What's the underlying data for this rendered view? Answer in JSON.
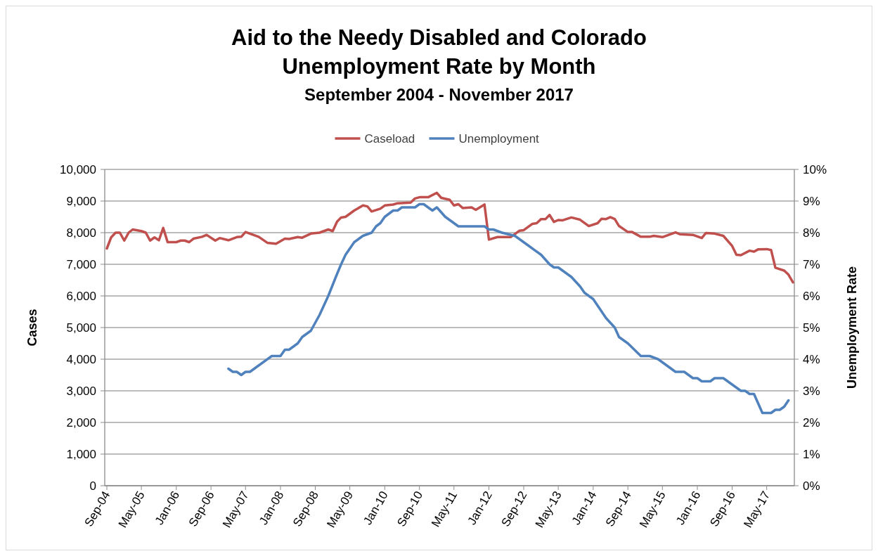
{
  "chart_data": {
    "type": "line",
    "title": "Aid to the Needy Disabled and Colorado Unemployment Rate by Month",
    "subtitle": "September 2004 - November 2017",
    "ylabel": "Cases",
    "y2label": "Unemployment Rate",
    "legend": "top",
    "grid": "y",
    "line_style": "solid",
    "marker": "none",
    "xlim": [
      "2004-09",
      "2017-11"
    ],
    "xticks": [
      {
        "value": "2004-09",
        "label": "Sep-04"
      },
      {
        "value": "2005-05",
        "label": "May-05"
      },
      {
        "value": "2006-01",
        "label": "Jan-06"
      },
      {
        "value": "2006-09",
        "label": "Sep-06"
      },
      {
        "value": "2007-05",
        "label": "May-07"
      },
      {
        "value": "2008-01",
        "label": "Jan-08"
      },
      {
        "value": "2008-09",
        "label": "Sep-08"
      },
      {
        "value": "2009-05",
        "label": "May-09"
      },
      {
        "value": "2010-01",
        "label": "Jan-10"
      },
      {
        "value": "2010-09",
        "label": "Sep-10"
      },
      {
        "value": "2011-05",
        "label": "May-11"
      },
      {
        "value": "2012-01",
        "label": "Jan-12"
      },
      {
        "value": "2012-09",
        "label": "Sep-12"
      },
      {
        "value": "2013-05",
        "label": "May-13"
      },
      {
        "value": "2014-01",
        "label": "Jan-14"
      },
      {
        "value": "2014-09",
        "label": "Sep-14"
      },
      {
        "value": "2015-05",
        "label": "May-15"
      },
      {
        "value": "2016-01",
        "label": "Jan-16"
      },
      {
        "value": "2016-09",
        "label": "Sep-16"
      },
      {
        "value": "2017-05",
        "label": "May-17"
      }
    ],
    "ylim": [
      0,
      10000
    ],
    "yticks": [
      0,
      {
        "value": 1000,
        "label": "1,000"
      },
      {
        "value": 2000,
        "label": "2,000"
      },
      {
        "value": 3000,
        "label": "3,000"
      },
      {
        "value": 4000,
        "label": "4,000"
      },
      {
        "value": 5000,
        "label": "5,000"
      },
      {
        "value": 6000,
        "label": "6,000"
      },
      {
        "value": 7000,
        "label": "7,000"
      },
      {
        "value": 8000,
        "label": "8,000"
      },
      {
        "value": 9000,
        "label": "9,000"
      },
      {
        "value": 10000,
        "label": "10,000"
      }
    ],
    "y2lim": [
      0,
      10
    ],
    "y2ticks": [
      {
        "value": 0,
        "label": "0%"
      },
      {
        "value": 1,
        "label": "1%"
      },
      {
        "value": 2,
        "label": "2%"
      },
      {
        "value": 3,
        "label": "3%"
      },
      {
        "value": 4,
        "label": "4%"
      },
      {
        "value": 5,
        "label": "5%"
      },
      {
        "value": 6,
        "label": "6%"
      },
      {
        "value": 7,
        "label": "7%"
      },
      {
        "value": 8,
        "label": "8%"
      },
      {
        "value": 9,
        "label": "9%"
      },
      {
        "value": 10,
        "label": "10%"
      }
    ],
    "series": [
      {
        "name": "Caseload",
        "color": "#c0504d",
        "x": [
          "2004-09",
          "2004-10",
          "2004-11",
          "2004-12",
          "2005-01",
          "2005-02",
          "2005-03",
          "2005-05",
          "2005-06",
          "2005-07",
          "2005-08",
          "2005-09",
          "2005-10",
          "2005-11",
          "2006-01",
          "2006-02",
          "2006-03",
          "2006-04",
          "2006-05",
          "2006-07",
          "2006-08",
          "2006-10",
          "2006-11",
          "2007-01",
          "2007-03",
          "2007-04",
          "2007-05",
          "2007-08",
          "2007-10",
          "2007-12",
          "2008-02",
          "2008-03",
          "2008-05",
          "2008-06",
          "2008-08",
          "2008-10",
          "2008-12",
          "2009-01",
          "2009-02",
          "2009-03",
          "2009-04",
          "2009-06",
          "2009-08",
          "2009-09",
          "2009-10",
          "2009-12",
          "2010-01",
          "2010-03",
          "2010-04",
          "2010-07",
          "2010-08",
          "2010-09",
          "2010-11",
          "2011-01",
          "2011-02",
          "2011-04",
          "2011-05",
          "2011-06",
          "2011-07",
          "2011-09",
          "2011-10",
          "2011-12",
          "2012-01",
          "2012-03",
          "2012-06",
          "2012-08",
          "2012-09",
          "2012-11",
          "2012-12",
          "2013-01",
          "2013-02",
          "2013-03",
          "2013-04",
          "2013-05",
          "2013-06",
          "2013-08",
          "2013-10",
          "2013-12",
          "2014-02",
          "2014-03",
          "2014-04",
          "2014-05",
          "2014-06",
          "2014-07",
          "2014-09",
          "2014-10",
          "2014-12",
          "2015-02",
          "2015-03",
          "2015-05",
          "2015-08",
          "2015-09",
          "2015-12",
          "2016-02",
          "2016-03",
          "2016-05",
          "2016-07",
          "2016-09",
          "2016-10",
          "2016-11",
          "2017-01",
          "2017-02",
          "2017-03",
          "2017-05",
          "2017-06",
          "2017-07",
          "2017-09",
          "2017-10",
          "2017-11"
        ],
        "values": [
          7500,
          7850,
          8000,
          8000,
          7750,
          8000,
          8100,
          8050,
          8000,
          7750,
          7850,
          7760,
          8150,
          7700,
          7700,
          7750,
          7750,
          7700,
          7810,
          7870,
          7930,
          7750,
          7830,
          7760,
          7860,
          7870,
          8020,
          7870,
          7680,
          7650,
          7810,
          7800,
          7860,
          7840,
          7970,
          8000,
          8100,
          8050,
          8350,
          8480,
          8500,
          8700,
          8860,
          8830,
          8670,
          8760,
          8860,
          8890,
          8930,
          8950,
          9080,
          9120,
          9120,
          9260,
          9100,
          9040,
          8860,
          8900,
          8780,
          8800,
          8720,
          8890,
          7780,
          7860,
          7860,
          8060,
          8080,
          8280,
          8300,
          8430,
          8430,
          8560,
          8340,
          8400,
          8390,
          8480,
          8410,
          8210,
          8300,
          8440,
          8430,
          8490,
          8430,
          8210,
          8020,
          8020,
          7870,
          7870,
          7900,
          7860,
          8010,
          7950,
          7930,
          7830,
          7990,
          7970,
          7900,
          7580,
          7300,
          7290,
          7430,
          7400,
          7470,
          7480,
          7450,
          6890,
          6800,
          6670,
          6430
        ]
      },
      {
        "name": "Unemployment",
        "color": "#4f81bd",
        "axis": "y2",
        "x": [
          "2007-01",
          "2007-02",
          "2007-03",
          "2007-04",
          "2007-05",
          "2007-06",
          "2007-08",
          "2007-11",
          "2008-01",
          "2008-02",
          "2008-03",
          "2008-05",
          "2008-06",
          "2008-08",
          "2008-10",
          "2008-12",
          "2009-02",
          "2009-03",
          "2009-04",
          "2009-06",
          "2009-08",
          "2009-10",
          "2009-11",
          "2009-12",
          "2010-01",
          "2010-03",
          "2010-04",
          "2010-05",
          "2010-08",
          "2010-09",
          "2010-10",
          "2010-12",
          "2011-01",
          "2011-03",
          "2011-06",
          "2011-12",
          "2012-01",
          "2012-02",
          "2012-04",
          "2012-07",
          "2012-10",
          "2013-01",
          "2013-03",
          "2013-04",
          "2013-05",
          "2013-08",
          "2013-10",
          "2013-11",
          "2014-01",
          "2014-04",
          "2014-06",
          "2014-07",
          "2014-09",
          "2014-12",
          "2015-02",
          "2015-04",
          "2015-06",
          "2015-08",
          "2015-10",
          "2015-12",
          "2016-01",
          "2016-02",
          "2016-04",
          "2016-05",
          "2016-07",
          "2016-11",
          "2016-12",
          "2017-01",
          "2017-02",
          "2017-04",
          "2017-06",
          "2017-07",
          "2017-08",
          "2017-09",
          "2017-10"
        ],
        "values": [
          3.7,
          3.6,
          3.6,
          3.5,
          3.6,
          3.6,
          3.8,
          4.1,
          4.1,
          4.3,
          4.3,
          4.5,
          4.7,
          4.9,
          5.4,
          6.0,
          6.7,
          7.0,
          7.3,
          7.7,
          7.9,
          8.0,
          8.2,
          8.3,
          8.5,
          8.7,
          8.7,
          8.8,
          8.8,
          8.9,
          8.9,
          8.7,
          8.8,
          8.5,
          8.2,
          8.2,
          8.1,
          8.1,
          8.0,
          7.9,
          7.6,
          7.3,
          7.0,
          6.9,
          6.9,
          6.6,
          6.3,
          6.1,
          5.9,
          5.3,
          5.0,
          4.7,
          4.5,
          4.1,
          4.1,
          4.0,
          3.8,
          3.6,
          3.6,
          3.4,
          3.4,
          3.3,
          3.3,
          3.4,
          3.4,
          3.0,
          3.0,
          2.9,
          2.9,
          2.3,
          2.3,
          2.4,
          2.4,
          2.5,
          2.7
        ]
      }
    ]
  }
}
